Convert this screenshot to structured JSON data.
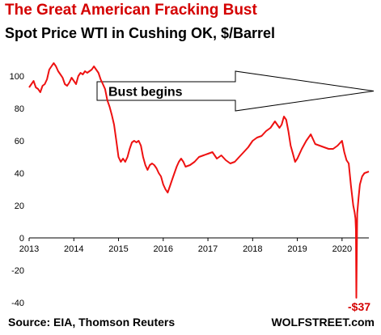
{
  "chart_data": {
    "type": "line",
    "title": "The Great American Fracking Bust",
    "subtitle": "Spot Price WTI in Cushing OK, $/Barrel",
    "source": "Source: EIA, Thomson Reuters",
    "credit": "WOLFSTREET.com",
    "xlabel": "",
    "ylabel": "",
    "xlim": [
      2013,
      2020.6
    ],
    "ylim": [
      -40,
      110
    ],
    "x_ticks": [
      "2013",
      "2014",
      "2015",
      "2016",
      "2017",
      "2018",
      "2019",
      "2020"
    ],
    "y_ticks": [
      "100",
      "80",
      "60",
      "40",
      "20",
      "0",
      "-20",
      "-40"
    ],
    "grid": false,
    "line_color": "#ee1111",
    "title_color": "#d40000",
    "series": [
      {
        "x": [
          2013.0,
          2013.05,
          2013.1,
          2013.15,
          2013.2,
          2013.25,
          2013.3,
          2013.35,
          2013.4,
          2013.45,
          2013.5,
          2013.55,
          2013.6,
          2013.65,
          2013.7,
          2013.75,
          2013.8,
          2013.85,
          2013.9,
          2013.95,
          2014.0,
          2014.05,
          2014.1,
          2014.15,
          2014.2,
          2014.25,
          2014.3,
          2014.35,
          2014.4,
          2014.45,
          2014.5,
          2014.55,
          2014.6,
          2014.65,
          2014.7,
          2014.75,
          2014.8,
          2014.85,
          2014.9,
          2014.95,
          2015.0,
          2015.05,
          2015.1,
          2015.15,
          2015.2,
          2015.25,
          2015.3,
          2015.35,
          2015.4,
          2015.45,
          2015.5,
          2015.55,
          2015.6,
          2015.65,
          2015.7,
          2015.75,
          2015.8,
          2015.85,
          2015.9,
          2015.95,
          2016.0,
          2016.05,
          2016.1,
          2016.15,
          2016.2,
          2016.25,
          2016.3,
          2016.35,
          2016.4,
          2016.45,
          2016.5,
          2016.6,
          2016.7,
          2016.8,
          2016.9,
          2017.0,
          2017.1,
          2017.2,
          2017.3,
          2017.4,
          2017.5,
          2017.6,
          2017.7,
          2017.8,
          2017.9,
          2018.0,
          2018.1,
          2018.2,
          2018.3,
          2018.4,
          2018.5,
          2018.55,
          2018.6,
          2018.65,
          2018.7,
          2018.75,
          2018.8,
          2018.85,
          2018.9,
          2018.95,
          2019.0,
          2019.1,
          2019.2,
          2019.3,
          2019.4,
          2019.5,
          2019.6,
          2019.7,
          2019.8,
          2019.9,
          2020.0,
          2020.05,
          2020.1,
          2020.15,
          2020.2,
          2020.25,
          2020.28,
          2020.3,
          2020.31,
          2020.32,
          2020.34,
          2020.37,
          2020.4,
          2020.45,
          2020.5,
          2020.6
        ],
        "y": [
          93,
          95,
          97,
          93,
          92,
          90,
          94,
          95,
          98,
          104,
          106,
          108,
          106,
          103,
          101,
          99,
          95,
          94,
          96,
          99,
          97,
          95,
          100,
          102,
          101,
          103,
          102,
          103,
          104,
          106,
          104,
          102,
          98,
          95,
          92,
          85,
          81,
          76,
          70,
          60,
          50,
          47,
          49,
          47,
          50,
          55,
          59,
          60,
          59,
          60,
          57,
          50,
          45,
          42,
          45,
          46,
          45,
          43,
          40,
          38,
          33,
          30,
          28,
          32,
          36,
          40,
          44,
          47,
          49,
          47,
          44,
          45,
          47,
          50,
          51,
          52,
          53,
          49,
          51,
          48,
          46,
          47,
          50,
          53,
          56,
          60,
          62,
          63,
          66,
          68,
          72,
          70,
          68,
          70,
          75,
          73,
          66,
          57,
          52,
          47,
          49,
          55,
          60,
          64,
          58,
          57,
          56,
          55,
          55,
          57,
          60,
          53,
          48,
          46,
          32,
          20,
          16,
          12,
          5,
          -37,
          15,
          25,
          33,
          38,
          40,
          41
        ]
      }
    ],
    "annotations": {
      "arrow_label": "Bust begins",
      "min_label": "-$37"
    }
  }
}
